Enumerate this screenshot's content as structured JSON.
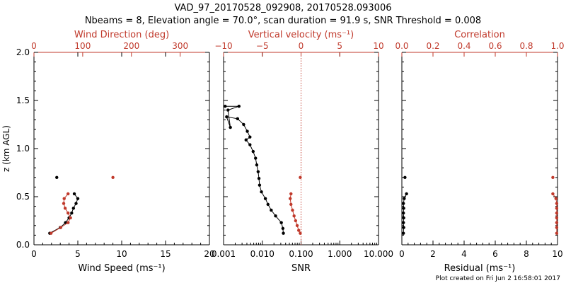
{
  "title": {
    "line1": "VAD_97_20170528_092908, 20170528.093006",
    "line2": "Nbeams = 8, Elevation angle = 70.0°, scan duration = 91.9 s, SNR Threshold = 0.008"
  },
  "footer": "Plot created on Fri Jun  2 16:58:01 2017",
  "colors": {
    "black": "#000000",
    "red": "#c0392b"
  },
  "chart_data": [
    {
      "id": "wind",
      "type": "line",
      "xlabel": "Wind Speed (ms⁻¹)",
      "ylabel": "z (km AGL)",
      "xlim": [
        0,
        20
      ],
      "xticks": [
        "0",
        "5",
        "10",
        "15",
        "20"
      ],
      "top_axis": {
        "label": "Wind Direction (deg)",
        "xlim": [
          0,
          360
        ],
        "ticks": [
          "0",
          "100",
          "200",
          "300"
        ]
      },
      "ylim": [
        0,
        2.0
      ],
      "yticks": [
        "0.0",
        "0.5",
        "1.0",
        "1.5",
        "2.0"
      ],
      "series": [
        {
          "name": "Wind Speed",
          "color": "black",
          "points": [
            [
              1.8,
              0.12
            ],
            [
              3.0,
              0.18
            ],
            [
              3.6,
              0.23
            ],
            [
              4.0,
              0.28
            ],
            [
              4.3,
              0.33
            ],
            [
              4.5,
              0.38
            ],
            [
              4.8,
              0.43
            ],
            [
              5.0,
              0.48
            ],
            [
              4.6,
              0.53
            ]
          ],
          "isolated": [
            [
              2.6,
              0.7
            ]
          ]
        },
        {
          "name": "Wind Direction",
          "color": "red",
          "points": [
            [
              35,
              0.12
            ],
            [
              55,
              0.18
            ],
            [
              70,
              0.23
            ],
            [
              75,
              0.28
            ],
            [
              70,
              0.33
            ],
            [
              64,
              0.38
            ],
            [
              61,
              0.43
            ],
            [
              62,
              0.48
            ],
            [
              70,
              0.53
            ]
          ],
          "isolated": [
            [
              162,
              0.7
            ]
          ]
        }
      ]
    },
    {
      "id": "snr",
      "type": "line",
      "xlabel": "SNR",
      "xscale": "log",
      "xlim": [
        0.001,
        10
      ],
      "xticks": [
        "0.001",
        "0.010",
        "0.100",
        "1.000",
        "10.000"
      ],
      "top_axis": {
        "label": "Vertical velocity (ms⁻¹)",
        "xlim": [
          -10,
          10
        ],
        "ticks": [
          "−10",
          "−5",
          "0",
          "5",
          "10"
        ]
      },
      "ylim": [
        0,
        2.0
      ],
      "series": [
        {
          "name": "SNR",
          "color": "black",
          "points": [
            [
              0.035,
              0.12
            ],
            [
              0.034,
              0.17
            ],
            [
              0.031,
              0.23
            ],
            [
              0.022,
              0.3
            ],
            [
              0.017,
              0.36
            ],
            [
              0.014,
              0.42
            ],
            [
              0.012,
              0.48
            ],
            [
              0.0095,
              0.55
            ],
            [
              0.0085,
              0.62
            ],
            [
              0.0082,
              0.69
            ],
            [
              0.0078,
              0.76
            ],
            [
              0.0072,
              0.83
            ],
            [
              0.0067,
              0.9
            ],
            [
              0.0058,
              0.97
            ],
            [
              0.0048,
              1.04
            ],
            [
              0.0038,
              1.09
            ],
            [
              0.0048,
              1.12
            ],
            [
              0.0041,
              1.18
            ],
            [
              0.0033,
              1.25
            ],
            [
              0.0023,
              1.31
            ],
            [
              0.0012,
              1.33
            ],
            [
              0.0015,
              1.22
            ],
            [
              0.0013,
              1.4
            ],
            [
              0.0025,
              1.44
            ],
            [
              0.0011,
              1.44
            ]
          ]
        },
        {
          "name": "Vertical velocity",
          "color": "red",
          "points": [
            [
              -0.1,
              0.12
            ],
            [
              -0.3,
              0.15
            ],
            [
              -0.5,
              0.2
            ],
            [
              -0.7,
              0.25
            ],
            [
              -0.9,
              0.3
            ],
            [
              -1.1,
              0.36
            ],
            [
              -1.3,
              0.42
            ],
            [
              -1.4,
              0.48
            ],
            [
              -1.3,
              0.53
            ]
          ],
          "isolated": [
            [
              -0.1,
              0.7
            ]
          ],
          "reference_x": 0
        }
      ]
    },
    {
      "id": "correlation",
      "type": "line",
      "xlabel": "Residual (ms⁻¹)",
      "xlim": [
        0,
        10
      ],
      "xticks": [
        "0",
        "2",
        "4",
        "6",
        "8",
        "10"
      ],
      "top_axis": {
        "label": "Correlation",
        "xlim": [
          0,
          1.0
        ],
        "ticks": [
          "0.0",
          "0.2",
          "0.4",
          "0.6",
          "0.8",
          "1.0"
        ]
      },
      "ylim": [
        0,
        2.0
      ],
      "series": [
        {
          "name": "Residual",
          "color": "black",
          "points": [
            [
              0.1,
              0.12
            ],
            [
              0.12,
              0.18
            ],
            [
              0.1,
              0.23
            ],
            [
              0.12,
              0.28
            ],
            [
              0.1,
              0.33
            ],
            [
              0.12,
              0.38
            ],
            [
              0.1,
              0.43
            ],
            [
              0.15,
              0.48
            ],
            [
              0.3,
              0.53
            ]
          ],
          "isolated": [
            [
              0.2,
              0.7
            ]
          ]
        },
        {
          "name": "Correlation",
          "color": "red",
          "points": [
            [
              0.995,
              0.12
            ],
            [
              0.995,
              0.18
            ],
            [
              0.995,
              0.23
            ],
            [
              0.995,
              0.28
            ],
            [
              0.995,
              0.33
            ],
            [
              0.995,
              0.38
            ],
            [
              0.995,
              0.43
            ],
            [
              0.99,
              0.48
            ],
            [
              0.97,
              0.53
            ]
          ],
          "isolated": [
            [
              0.97,
              0.7
            ]
          ]
        }
      ]
    }
  ]
}
